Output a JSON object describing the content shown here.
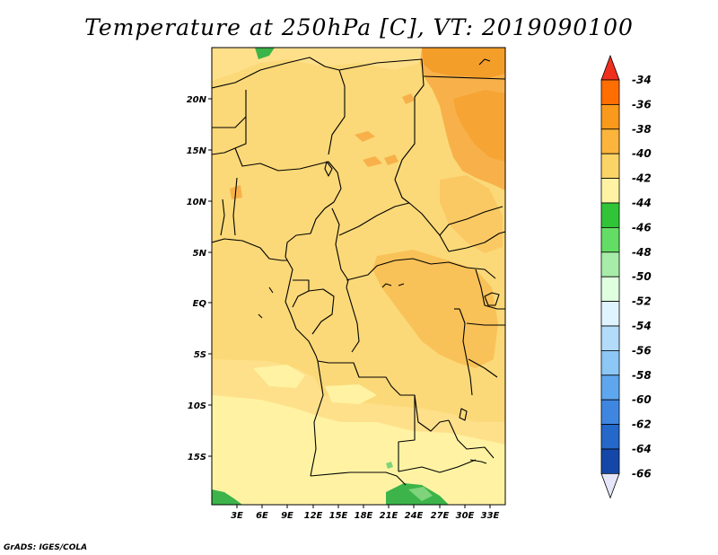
{
  "title": "Temperature at 250hPa [C], VT: 2019090100",
  "credit": "GrADS: IGES/COLA",
  "map": {
    "lat_labels": [
      "20N",
      "15N",
      "10N",
      "5N",
      "EQ",
      "5S",
      "10S",
      "15S"
    ],
    "lon_labels": [
      "3E",
      "6E",
      "9E",
      "12E",
      "15E",
      "18E",
      "21E",
      "24E",
      "27E",
      "30E",
      "33E"
    ],
    "fill_colors": {
      "t38": "#f5a03a",
      "t40": "#fbc964",
      "t42": "#fee08b",
      "t44": "#fff6a8",
      "g46": "#3cb44a",
      "g48": "#7fd37a"
    }
  },
  "colorbar": {
    "labels": [
      "-34",
      "-36",
      "-38",
      "-40",
      "-42",
      "-44",
      "-46",
      "-48",
      "-50",
      "-52",
      "-54",
      "-56",
      "-58",
      "-60",
      "-62",
      "-64",
      "-66"
    ],
    "colors": [
      "#f0301e",
      "#ff6e00",
      "#f99a1c",
      "#fbb53c",
      "#fbd468",
      "#fff3a3",
      "#31c438",
      "#64dd64",
      "#a8ecaa",
      "#e0ffe0",
      "#e0f4ff",
      "#b2dcf9",
      "#8cc7f5",
      "#5ea7ee",
      "#3f86e1",
      "#2468c9",
      "#1447a8",
      "#081a72",
      "#e6e6fa"
    ]
  }
}
